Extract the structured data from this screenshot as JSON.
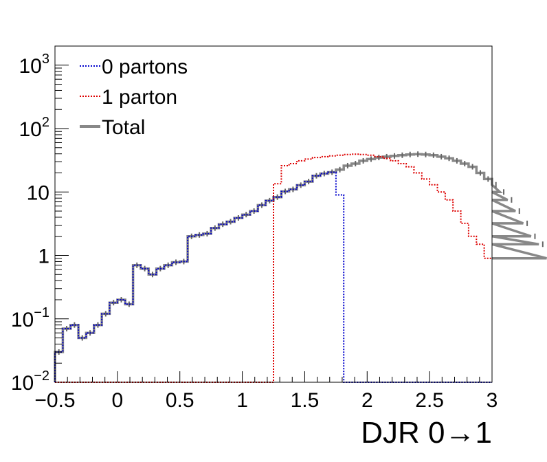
{
  "chart_data": {
    "type": "line",
    "step": true,
    "xlabel": "DJR 0→1",
    "ylabel": "",
    "title": "",
    "xlim": [
      -0.5,
      3
    ],
    "ylim": [
      0.01,
      2000
    ],
    "ylog": true,
    "bin_width": 0.0625,
    "x_ticks": [
      {
        "value": -0.5,
        "label": "−0.5"
      },
      {
        "value": 0,
        "label": "0"
      },
      {
        "value": 0.5,
        "label": "0.5"
      },
      {
        "value": 1,
        "label": "1"
      },
      {
        "value": 1.5,
        "label": "1.5"
      },
      {
        "value": 2,
        "label": "2"
      },
      {
        "value": 2.5,
        "label": "2.5"
      },
      {
        "value": 3,
        "label": "3"
      }
    ],
    "y_ticks": [
      {
        "value": 0.01,
        "base": "10",
        "exp": "−2"
      },
      {
        "value": 0.1,
        "base": "10",
        "exp": "−1"
      },
      {
        "value": 1,
        "base": "1",
        "exp": ""
      },
      {
        "value": 10,
        "base": "10",
        "exp": ""
      },
      {
        "value": 100,
        "base": "10",
        "exp": "2"
      },
      {
        "value": 1000,
        "base": "10",
        "exp": "3"
      }
    ],
    "legend_position": "top-left",
    "series": [
      {
        "name": "0 partons",
        "color": "#0000cc",
        "style": "dotted",
        "x_start": -0.5,
        "bin_width": 0.0625,
        "values": [
          0.03,
          0.07,
          0.08,
          0.05,
          0.06,
          0.08,
          0.12,
          0.18,
          0.2,
          0.17,
          0.7,
          0.62,
          0.5,
          0.62,
          0.7,
          0.78,
          0.8,
          2.0,
          2.1,
          2.2,
          2.7,
          3.1,
          3.4,
          3.9,
          4.4,
          5.0,
          6.2,
          7.3,
          8.3,
          10.2,
          11.0,
          12.8,
          14.6,
          18.0,
          19.5,
          20.5,
          9.0
        ],
        "after": 0.01
      },
      {
        "name": "1 parton",
        "color": "#dd0000",
        "style": "dotted",
        "x_start": 1.25,
        "bin_width": 0.0625,
        "before": 0.01,
        "values": [
          13.5,
          26,
          28,
          31,
          33,
          35,
          36,
          37,
          38,
          39,
          39.5,
          39,
          38,
          36,
          34,
          31,
          28,
          25,
          20,
          16,
          13,
          10,
          7.5,
          5.0,
          3.2,
          2.0,
          1.5,
          0.9
        ]
      },
      {
        "name": "Total",
        "color": "#888888",
        "style": "solid",
        "x_start": -0.5,
        "bin_width": 0.0625,
        "values": [
          0.03,
          0.07,
          0.08,
          0.05,
          0.06,
          0.08,
          0.12,
          0.18,
          0.2,
          0.17,
          0.7,
          0.62,
          0.5,
          0.62,
          0.7,
          0.78,
          0.8,
          2.0,
          2.1,
          2.2,
          2.7,
          3.1,
          3.4,
          3.9,
          4.4,
          5.0,
          6.2,
          7.3,
          8.3,
          10.2,
          11.0,
          12.8,
          14.6,
          18.0,
          19.5,
          20.5,
          22.5,
          26,
          28,
          31,
          33,
          35,
          36,
          37,
          38,
          39,
          39.5,
          39,
          38,
          36,
          34,
          31,
          28,
          25,
          20,
          16,
          13,
          10,
          7.5,
          5.0,
          3.2,
          2.0,
          1.5,
          0.9
        ]
      }
    ]
  }
}
